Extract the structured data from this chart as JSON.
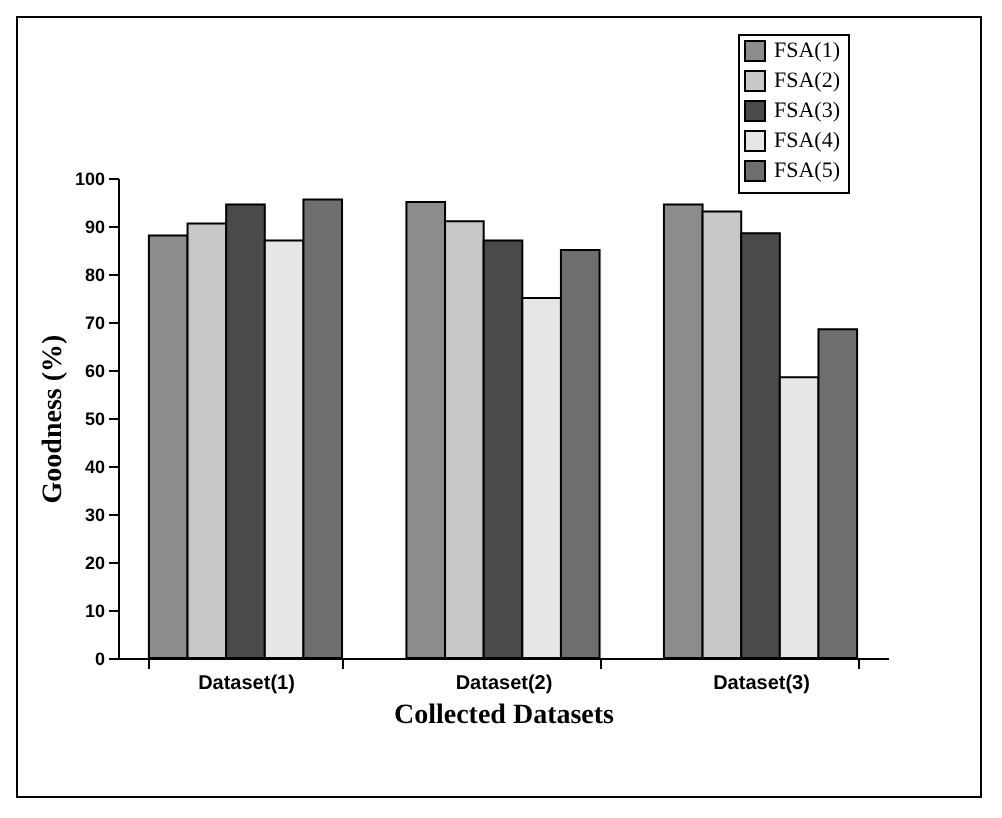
{
  "chart_data": {
    "type": "bar",
    "xlabel": "Collected Datasets",
    "ylabel": "Goodness (%)",
    "categories": [
      "Dataset(1)",
      "Dataset(2)",
      "Dataset(3)"
    ],
    "ylim": [
      0,
      100
    ],
    "yticks": [
      0,
      10,
      20,
      30,
      40,
      50,
      60,
      70,
      80,
      90,
      100
    ],
    "grid": false,
    "legend": "top right",
    "series": [
      {
        "name": "FSA(1)",
        "color": "#8c8c8c",
        "values": [
          88,
          95,
          94.5
        ]
      },
      {
        "name": "FSA(2)",
        "color": "#c8c8c8",
        "values": [
          90.5,
          91,
          93
        ]
      },
      {
        "name": "FSA(3)",
        "color": "#4a4a4a",
        "values": [
          94.5,
          87,
          88.5
        ]
      },
      {
        "name": "FSA(4)",
        "color": "#e6e6e6",
        "values": [
          87,
          75,
          58.5
        ]
      },
      {
        "name": "FSA(5)",
        "color": "#6e6e6e",
        "values": [
          95.5,
          85,
          68.5
        ]
      }
    ]
  }
}
